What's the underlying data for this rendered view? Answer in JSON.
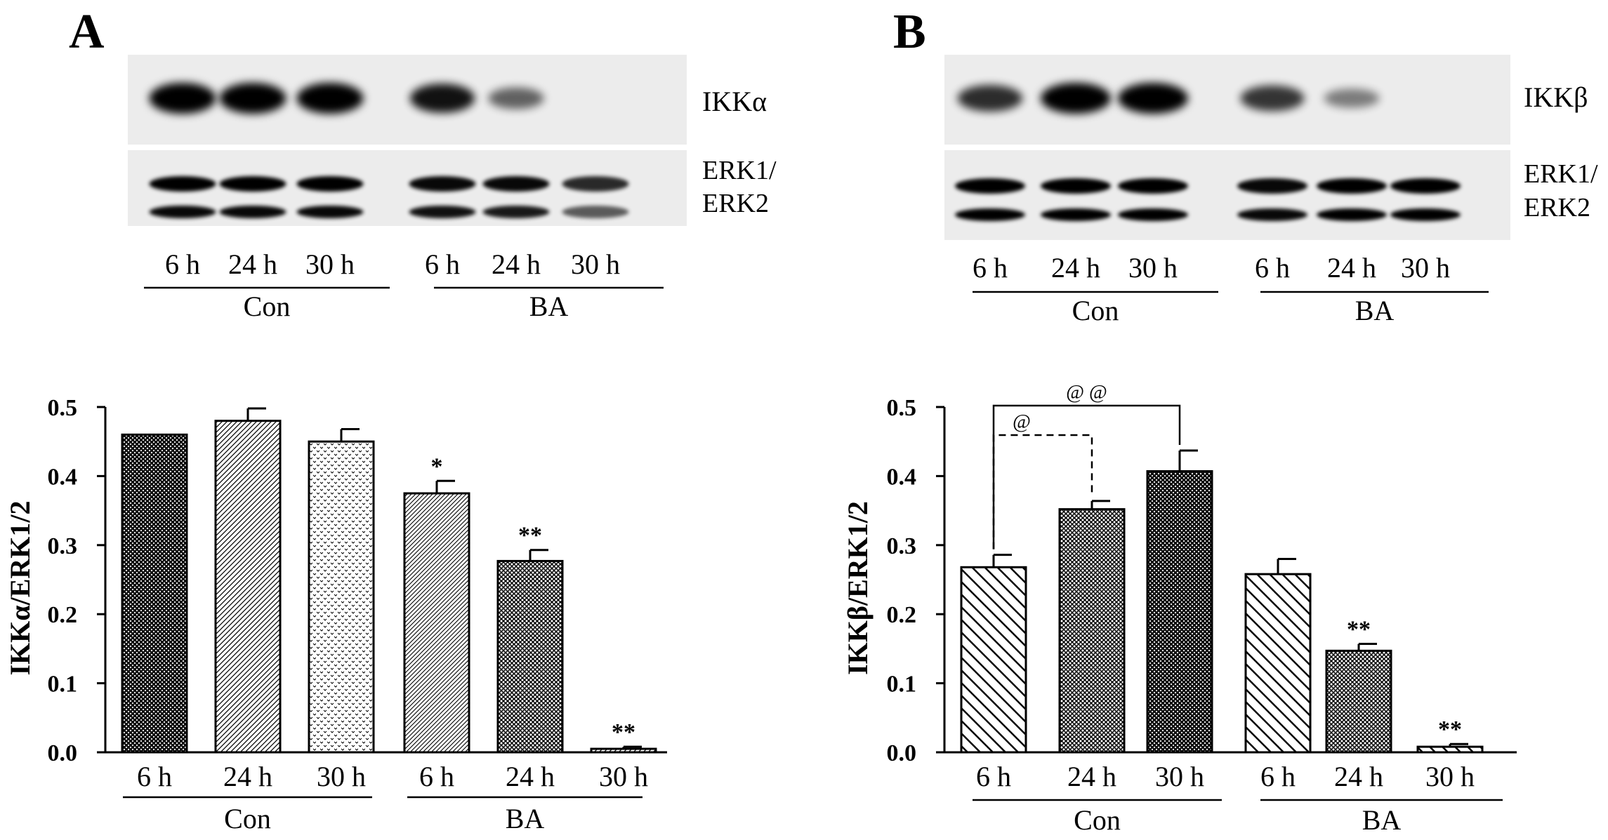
{
  "panels": [
    {
      "letter": "A",
      "blot": {
        "target_label": "IKKα",
        "loading_label_line1": "ERK1/",
        "loading_label_line2": "ERK2",
        "target_intensity": [
          1.0,
          1.0,
          1.0,
          0.9,
          0.45,
          0.0
        ],
        "erk1_intensity": [
          1.0,
          1.0,
          1.0,
          0.95,
          0.95,
          0.75
        ],
        "erk2_intensity": [
          0.95,
          0.95,
          0.95,
          0.9,
          0.85,
          0.45
        ]
      },
      "lane_labels": [
        "6 h",
        "24 h",
        "30 h",
        "6 h",
        "24 h",
        "30 h"
      ],
      "group_labels": [
        "Con",
        "BA"
      ]
    },
    {
      "letter": "B",
      "blot": {
        "target_label": "IKKβ",
        "loading_label_line1": "ERK1/",
        "loading_label_line2": "ERK2",
        "target_intensity": [
          0.75,
          1.0,
          1.0,
          0.7,
          0.3,
          0.0
        ],
        "erk1_intensity": [
          1.0,
          1.0,
          1.0,
          0.95,
          1.0,
          1.0
        ],
        "erk2_intensity": [
          1.0,
          1.0,
          1.0,
          0.95,
          1.0,
          1.0
        ]
      },
      "lane_labels": [
        "6 h",
        "24 h",
        "30 h",
        "6 h",
        "24 h",
        "30 h"
      ],
      "group_labels": [
        "Con",
        "BA"
      ]
    }
  ],
  "chart_data": [
    {
      "type": "bar",
      "ylabel": "IKKα/ERK1/2",
      "ylim": [
        0,
        0.5
      ],
      "yticks": [
        "0.0",
        "0.1",
        "0.2",
        "0.3",
        "0.4",
        "0.5"
      ],
      "categories": [
        "6 h",
        "24 h",
        "30 h",
        "6 h",
        "24 h",
        "30 h"
      ],
      "groups": [
        {
          "label": "Con",
          "members": [
            0,
            1,
            2
          ]
        },
        {
          "label": "BA",
          "members": [
            3,
            4,
            5
          ]
        }
      ],
      "values": [
        0.46,
        0.48,
        0.45,
        0.375,
        0.277,
        0.005
      ],
      "errors": [
        0.0,
        0.018,
        0.018,
        0.018,
        0.016,
        0.003
      ],
      "annotations": [
        "",
        "",
        "",
        "*",
        "**",
        "**"
      ],
      "patterns": [
        "dense-cross",
        "diag-right",
        "dots",
        "diag-right-fine",
        "cross-fine",
        "diag-right"
      ],
      "comparisons": []
    },
    {
      "type": "bar",
      "ylabel": "IKKβ/ERK1/2",
      "ylim": [
        0,
        0.5
      ],
      "yticks": [
        "0.0",
        "0.1",
        "0.2",
        "0.3",
        "0.4",
        "0.5"
      ],
      "categories": [
        "6 h",
        "24 h",
        "30 h",
        "6 h",
        "24 h",
        "30 h"
      ],
      "groups": [
        {
          "label": "Con",
          "members": [
            0,
            1,
            2
          ]
        },
        {
          "label": "BA",
          "members": [
            3,
            4,
            5
          ]
        }
      ],
      "values": [
        0.268,
        0.352,
        0.407,
        0.258,
        0.147,
        0.008
      ],
      "errors": [
        0.018,
        0.012,
        0.03,
        0.022,
        0.01,
        0.004
      ],
      "annotations": [
        "",
        "",
        "",
        "",
        "**",
        "**"
      ],
      "patterns": [
        "diag-left-wide",
        "cross-fine",
        "dense-cross",
        "diag-left-wide",
        "cross-fine",
        "diag-left-wide"
      ],
      "comparisons": [
        {
          "from": 0,
          "to": 1,
          "label": "@",
          "style": "dashed"
        },
        {
          "from": 0,
          "to": 2,
          "label": "@ @",
          "style": "solid"
        }
      ]
    }
  ]
}
